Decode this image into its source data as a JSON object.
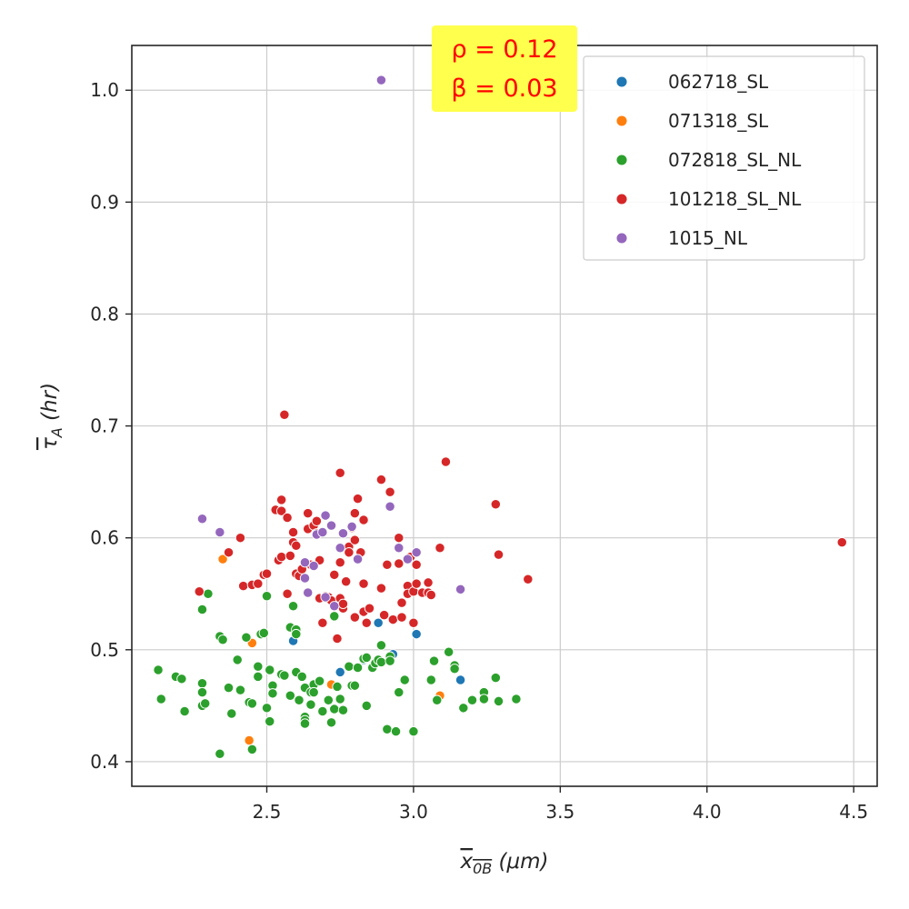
{
  "chart_data": {
    "type": "scatter",
    "xlim": [
      2.04,
      4.58
    ],
    "ylim": [
      0.378,
      1.04
    ],
    "x_ticks": [
      2.5,
      3.0,
      3.5,
      4.0,
      4.5
    ],
    "y_ticks": [
      0.4,
      0.5,
      0.6,
      0.7,
      0.8,
      0.9,
      1.0
    ],
    "x_tick_labels": [
      "2.5",
      "3.0",
      "3.5",
      "4.0",
      "4.5"
    ],
    "y_tick_labels": [
      "0.4",
      "0.5",
      "0.6",
      "0.7",
      "0.8",
      "0.9",
      "1.0"
    ],
    "xlabel": {
      "main": "x",
      "sub": "0B",
      "unit": " (μm)"
    },
    "ylabel": {
      "main": "τ",
      "sub": "A",
      "unit": " (hr)"
    },
    "grid": true,
    "legend_position": "top-right",
    "annotation": {
      "line1": "ρ = 0.12",
      "line2": "β = 0.03",
      "background": "#ffff4d",
      "color": "#ff0000"
    },
    "series": [
      {
        "name": "062718_SL",
        "color": "#1f77b4",
        "points": [
          [
            2.59,
            0.508
          ],
          [
            2.75,
            0.48
          ],
          [
            2.83,
            0.491
          ],
          [
            2.88,
            0.524
          ],
          [
            2.93,
            0.496
          ],
          [
            3.01,
            0.514
          ],
          [
            3.16,
            0.473
          ]
        ]
      },
      {
        "name": "071318_SL",
        "color": "#ff7f0e",
        "points": [
          [
            2.35,
            0.581
          ],
          [
            2.45,
            0.506
          ],
          [
            2.44,
            0.419
          ],
          [
            2.72,
            0.469
          ],
          [
            3.09,
            0.459
          ]
        ]
      },
      {
        "name": "072818_SL_NL",
        "color": "#2ca02c",
        "points": [
          [
            2.13,
            0.482
          ],
          [
            2.14,
            0.456
          ],
          [
            2.19,
            0.476
          ],
          [
            2.21,
            0.474
          ],
          [
            2.22,
            0.445
          ],
          [
            2.28,
            0.536
          ],
          [
            2.28,
            0.47
          ],
          [
            2.28,
            0.462
          ],
          [
            2.28,
            0.45
          ],
          [
            2.29,
            0.452
          ],
          [
            2.3,
            0.55
          ],
          [
            2.34,
            0.512
          ],
          [
            2.35,
            0.509
          ],
          [
            2.34,
            0.407
          ],
          [
            2.37,
            0.466
          ],
          [
            2.38,
            0.443
          ],
          [
            2.4,
            0.491
          ],
          [
            2.41,
            0.464
          ],
          [
            2.43,
            0.511
          ],
          [
            2.44,
            0.453
          ],
          [
            2.45,
            0.452
          ],
          [
            2.45,
            0.411
          ],
          [
            2.47,
            0.485
          ],
          [
            2.47,
            0.476
          ],
          [
            2.48,
            0.514
          ],
          [
            2.49,
            0.515
          ],
          [
            2.5,
            0.548
          ],
          [
            2.5,
            0.448
          ],
          [
            2.51,
            0.482
          ],
          [
            2.52,
            0.468
          ],
          [
            2.52,
            0.461
          ],
          [
            2.51,
            0.436
          ],
          [
            2.55,
            0.478
          ],
          [
            2.56,
            0.477
          ],
          [
            2.58,
            0.52
          ],
          [
            2.59,
            0.539
          ],
          [
            2.58,
            0.459
          ],
          [
            2.6,
            0.518
          ],
          [
            2.6,
            0.514
          ],
          [
            2.6,
            0.48
          ],
          [
            2.61,
            0.455
          ],
          [
            2.62,
            0.476
          ],
          [
            2.63,
            0.466
          ],
          [
            2.63,
            0.44
          ],
          [
            2.63,
            0.437
          ],
          [
            2.63,
            0.434
          ],
          [
            2.65,
            0.462
          ],
          [
            2.65,
            0.451
          ],
          [
            2.66,
            0.469
          ],
          [
            2.66,
            0.462
          ],
          [
            2.68,
            0.472
          ],
          [
            2.69,
            0.445
          ],
          [
            2.71,
            0.455
          ],
          [
            2.72,
            0.435
          ],
          [
            2.73,
            0.447
          ],
          [
            2.73,
            0.53
          ],
          [
            2.74,
            0.467
          ],
          [
            2.75,
            0.456
          ],
          [
            2.76,
            0.446
          ],
          [
            2.78,
            0.485
          ],
          [
            2.79,
            0.468
          ],
          [
            2.8,
            0.468
          ],
          [
            2.81,
            0.484
          ],
          [
            2.83,
            0.492
          ],
          [
            2.84,
            0.493
          ],
          [
            2.84,
            0.45
          ],
          [
            2.86,
            0.484
          ],
          [
            2.87,
            0.488
          ],
          [
            2.88,
            0.491
          ],
          [
            2.89,
            0.504
          ],
          [
            2.89,
            0.489
          ],
          [
            2.91,
            0.429
          ],
          [
            2.92,
            0.494
          ],
          [
            2.92,
            0.49
          ],
          [
            2.94,
            0.427
          ],
          [
            2.95,
            0.462
          ],
          [
            2.97,
            0.473
          ],
          [
            3.0,
            0.427
          ],
          [
            3.06,
            0.473
          ],
          [
            3.07,
            0.49
          ],
          [
            3.08,
            0.455
          ],
          [
            3.12,
            0.498
          ],
          [
            3.14,
            0.486
          ],
          [
            3.14,
            0.483
          ],
          [
            3.17,
            0.448
          ],
          [
            3.2,
            0.455
          ],
          [
            3.24,
            0.462
          ],
          [
            3.24,
            0.456
          ],
          [
            3.28,
            0.475
          ],
          [
            3.29,
            0.454
          ],
          [
            3.35,
            0.456
          ]
        ]
      },
      {
        "name": "101218_SL_NL",
        "color": "#d62728",
        "points": [
          [
            2.27,
            0.552
          ],
          [
            2.37,
            0.587
          ],
          [
            2.41,
            0.6
          ],
          [
            2.42,
            0.557
          ],
          [
            2.45,
            0.558
          ],
          [
            2.47,
            0.559
          ],
          [
            2.49,
            0.567
          ],
          [
            2.5,
            0.568
          ],
          [
            2.53,
            0.625
          ],
          [
            2.54,
            0.58
          ],
          [
            2.55,
            0.634
          ],
          [
            2.55,
            0.624
          ],
          [
            2.55,
            0.583
          ],
          [
            2.56,
            0.71
          ],
          [
            2.57,
            0.55
          ],
          [
            2.57,
            0.618
          ],
          [
            2.58,
            0.584
          ],
          [
            2.59,
            0.605
          ],
          [
            2.59,
            0.596
          ],
          [
            2.6,
            0.593
          ],
          [
            2.6,
            0.568
          ],
          [
            2.61,
            0.566
          ],
          [
            2.62,
            0.572
          ],
          [
            2.64,
            0.622
          ],
          [
            2.64,
            0.608
          ],
          [
            2.65,
            0.576
          ],
          [
            2.66,
            0.611
          ],
          [
            2.67,
            0.615
          ],
          [
            2.67,
            0.604
          ],
          [
            2.68,
            0.58
          ],
          [
            2.68,
            0.546
          ],
          [
            2.69,
            0.524
          ],
          [
            2.7,
            0.548
          ],
          [
            2.71,
            0.547
          ],
          [
            2.72,
            0.544
          ],
          [
            2.73,
            0.567
          ],
          [
            2.74,
            0.51
          ],
          [
            2.75,
            0.658
          ],
          [
            2.75,
            0.578
          ],
          [
            2.75,
            0.546
          ],
          [
            2.76,
            0.537
          ],
          [
            2.76,
            0.541
          ],
          [
            2.77,
            0.561
          ],
          [
            2.78,
            0.592
          ],
          [
            2.78,
            0.587
          ],
          [
            2.79,
            0.609
          ],
          [
            2.8,
            0.622
          ],
          [
            2.8,
            0.598
          ],
          [
            2.8,
            0.529
          ],
          [
            2.81,
            0.635
          ],
          [
            2.82,
            0.587
          ],
          [
            2.83,
            0.559
          ],
          [
            2.83,
            0.534
          ],
          [
            2.83,
            0.616
          ],
          [
            2.84,
            0.524
          ],
          [
            2.85,
            0.537
          ],
          [
            2.89,
            0.652
          ],
          [
            2.89,
            0.555
          ],
          [
            2.9,
            0.531
          ],
          [
            2.91,
            0.576
          ],
          [
            2.92,
            0.641
          ],
          [
            2.93,
            0.527
          ],
          [
            2.95,
            0.577
          ],
          [
            2.95,
            0.6
          ],
          [
            2.96,
            0.542
          ],
          [
            2.96,
            0.529
          ],
          [
            2.98,
            0.557
          ],
          [
            2.98,
            0.55
          ],
          [
            2.99,
            0.583
          ],
          [
            3.0,
            0.552
          ],
          [
            3.0,
            0.524
          ],
          [
            3.01,
            0.559
          ],
          [
            3.01,
            0.576
          ],
          [
            3.03,
            0.551
          ],
          [
            3.05,
            0.551
          ],
          [
            3.05,
            0.56
          ],
          [
            3.06,
            0.549
          ],
          [
            3.09,
            0.591
          ],
          [
            3.11,
            0.668
          ],
          [
            3.28,
            0.63
          ],
          [
            3.29,
            0.585
          ],
          [
            3.39,
            0.563
          ],
          [
            4.46,
            0.596
          ]
        ]
      },
      {
        "name": "1015_NL",
        "color": "#9467bd",
        "points": [
          [
            2.28,
            0.617
          ],
          [
            2.34,
            0.605
          ],
          [
            2.63,
            0.578
          ],
          [
            2.63,
            0.564
          ],
          [
            2.64,
            0.551
          ],
          [
            2.66,
            0.575
          ],
          [
            2.67,
            0.603
          ],
          [
            2.69,
            0.605
          ],
          [
            2.7,
            0.547
          ],
          [
            2.7,
            0.62
          ],
          [
            2.72,
            0.611
          ],
          [
            2.73,
            0.539
          ],
          [
            2.75,
            0.591
          ],
          [
            2.76,
            0.604
          ],
          [
            2.79,
            0.61
          ],
          [
            2.81,
            0.581
          ],
          [
            2.89,
            1.009
          ],
          [
            2.92,
            0.628
          ],
          [
            2.95,
            0.591
          ],
          [
            2.98,
            0.581
          ],
          [
            3.01,
            0.587
          ],
          [
            3.16,
            0.554
          ]
        ]
      }
    ]
  }
}
